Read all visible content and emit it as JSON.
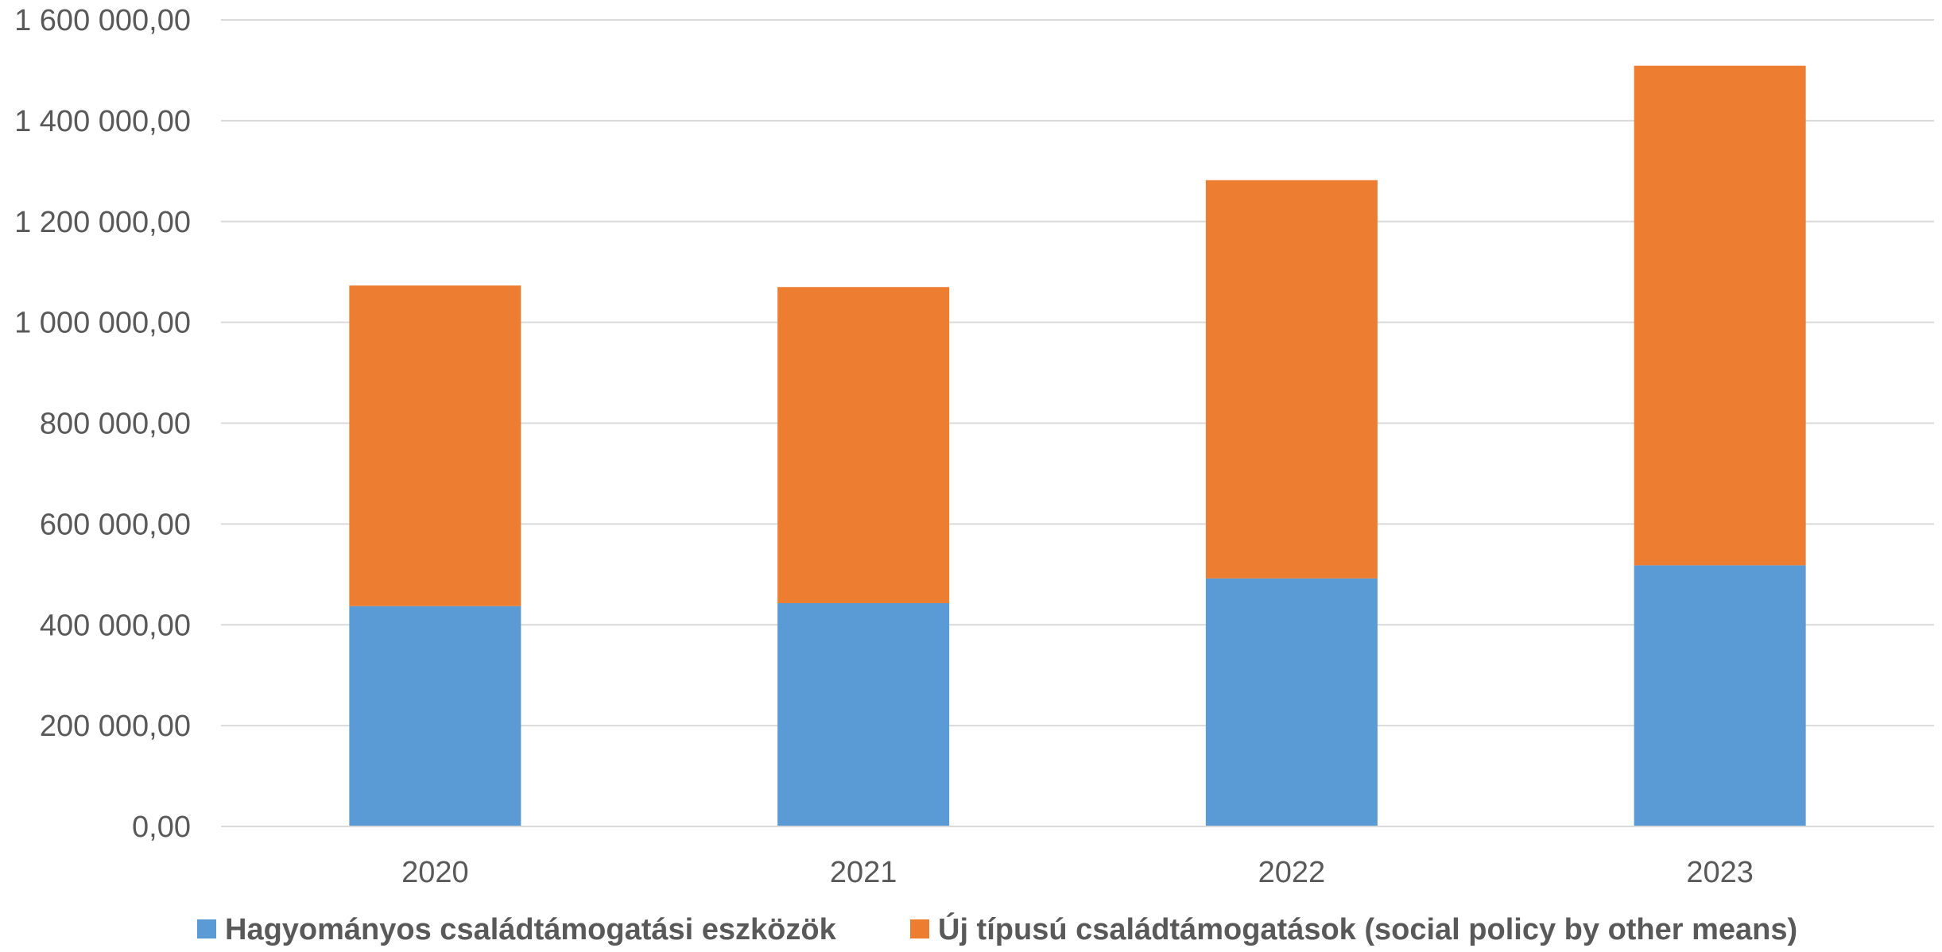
{
  "chart_data": {
    "type": "bar",
    "stacked": true,
    "categories": [
      "2020",
      "2021",
      "2022",
      "2023"
    ],
    "series": [
      {
        "name": "Hagyományos családtámogatási eszközök",
        "color": "#5B9BD5",
        "values": [
          437000,
          443000,
          492000,
          518000
        ]
      },
      {
        "name": "Új típusú családtámogatások (social policy by other means)",
        "color": "#ED7D31",
        "values": [
          636000,
          627000,
          790000,
          991000
        ]
      }
    ],
    "ylim": [
      0,
      1600000
    ],
    "yticks": [
      0,
      200000,
      400000,
      600000,
      800000,
      1000000,
      1200000,
      1400000,
      1600000
    ],
    "ytick_labels": [
      "0,00",
      "200 000,00",
      "400 000,00",
      "600 000,00",
      "800 000,00",
      "1 000 000,00",
      "1 200 000,00",
      "1 400 000,00",
      "1 600 000,00"
    ],
    "grid": true,
    "legend_position": "bottom",
    "title": "",
    "xlabel": "",
    "ylabel": ""
  }
}
